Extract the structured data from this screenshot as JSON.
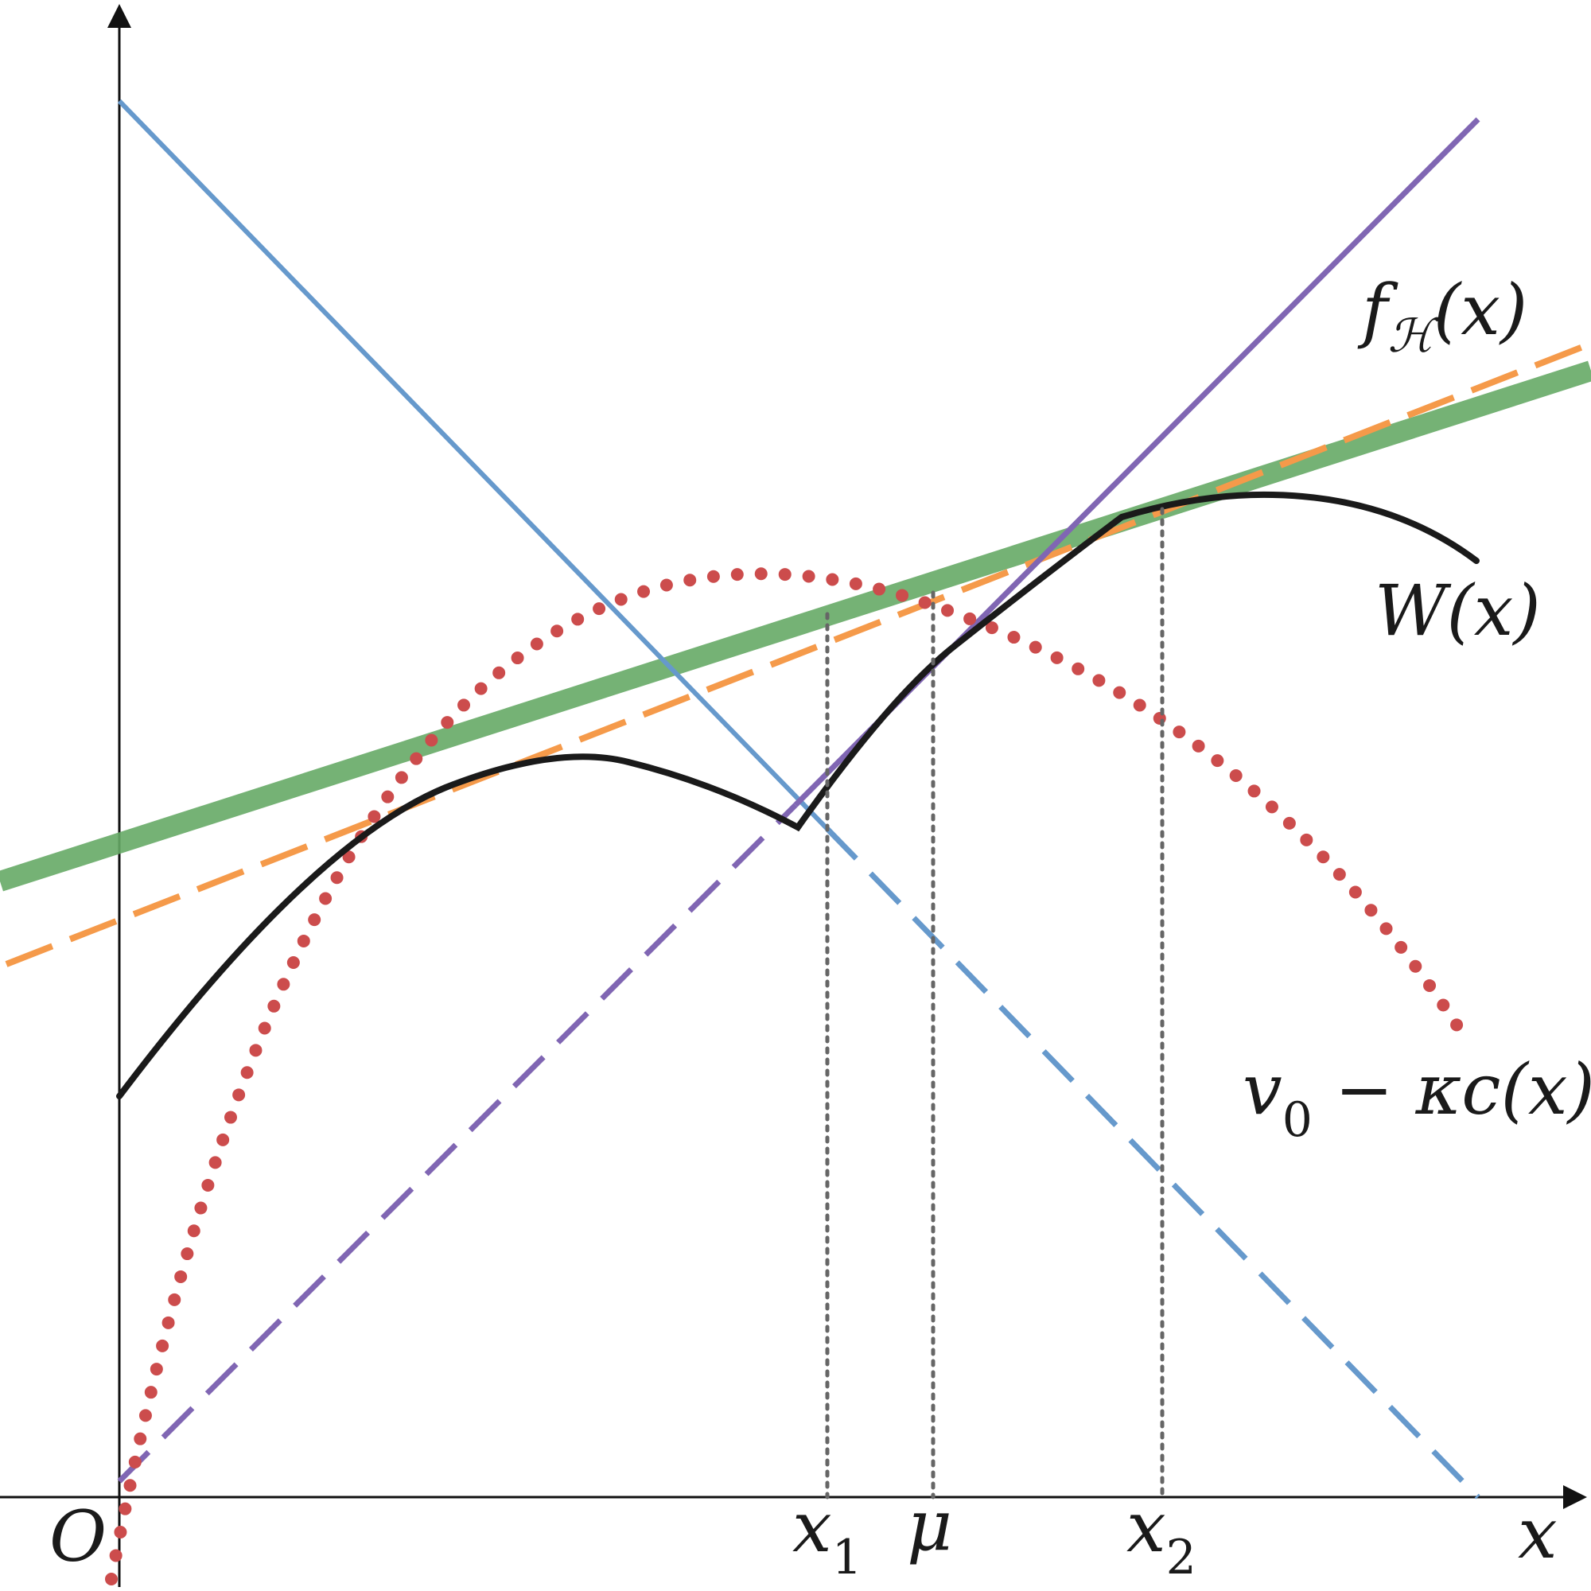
{
  "labels": {
    "origin": "O",
    "x_axis": "x",
    "x1": {
      "main": "x",
      "sub": "1"
    },
    "mu": "μ",
    "x2": {
      "main": "x",
      "sub": "2"
    },
    "f_H": {
      "main": "f",
      "sub": "ℋ",
      "arg": "(x)"
    },
    "W": "W(x)",
    "v0_kappa_c": {
      "v": "v",
      "sub": "0",
      "rest": " − κc(x)"
    }
  },
  "colors": {
    "axis": "#111111",
    "W_curve": "#1a1a1a",
    "blue_line": "#6699cc",
    "purple_line": "#8066b3",
    "green_line": "#66aa66",
    "orange_dashed": "#f59a4a",
    "red_dotted": "#cc4c4c",
    "guide_dotted": "#666666"
  }
}
